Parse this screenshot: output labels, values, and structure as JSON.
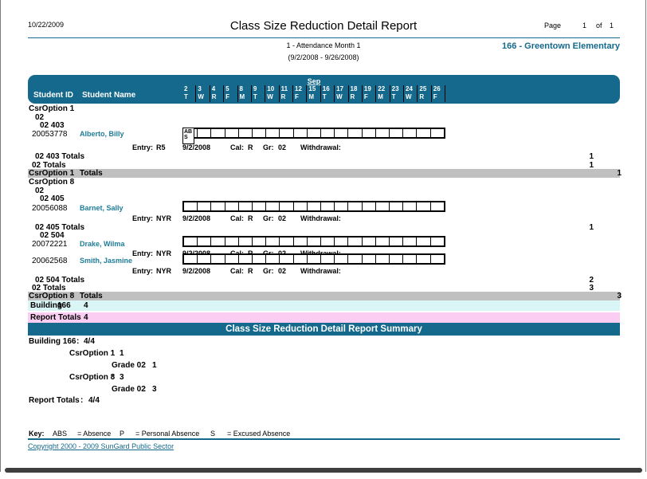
{
  "header": {
    "date": "10/22/2009",
    "title": "Class Size Reduction Detail Report",
    "page_label": "Page",
    "page_number": "1",
    "of_label": "of",
    "page_total": "1",
    "attendance_month": "1 - Attendance Month 1",
    "date_range": "(9/2/2008 - 9/26/2008)",
    "building_name": "166 - Greentown Elementary"
  },
  "grid_header": {
    "month": "Sep",
    "student_id_label": "Student ID",
    "student_name_label": "Student Name",
    "days": [
      {
        "num": "2",
        "dow": "T"
      },
      {
        "num": "3",
        "dow": "W"
      },
      {
        "num": "4",
        "dow": "R"
      },
      {
        "num": "5",
        "dow": "F"
      },
      {
        "num": "8",
        "dow": "M"
      },
      {
        "num": "9",
        "dow": "T"
      },
      {
        "num": "10",
        "dow": "W"
      },
      {
        "num": "11",
        "dow": "R"
      },
      {
        "num": "12",
        "dow": "F"
      },
      {
        "num": "15",
        "dow": "M"
      },
      {
        "num": "16",
        "dow": "T"
      },
      {
        "num": "17",
        "dow": "W"
      },
      {
        "num": "18",
        "dow": "R"
      },
      {
        "num": "19",
        "dow": "F"
      },
      {
        "num": "22",
        "dow": "M"
      },
      {
        "num": "23",
        "dow": "T"
      },
      {
        "num": "24",
        "dow": "W"
      },
      {
        "num": "25",
        "dow": "R"
      },
      {
        "num": "26",
        "dow": "F"
      }
    ]
  },
  "labels": {
    "entry": "Entry:",
    "cal": "Cal:",
    "gr": "Gr:",
    "withdrawal": "Withdrawal:",
    "totals_word": "Totals"
  },
  "attendance_cells": [
    "",
    "",
    "",
    "",
    "",
    "",
    "",
    "",
    "",
    "",
    "",
    "",
    "",
    "",
    "",
    "",
    "",
    "",
    ""
  ],
  "option1": {
    "title": "CsrOption 1",
    "grade": "02",
    "section": "02 403",
    "student": {
      "id": "20053778",
      "name": "Alberto, Billy",
      "abs_code": "ABS",
      "entry_code": "R5",
      "entry_date": "9/2/2008",
      "calendar": "R",
      "grade": "02"
    },
    "section_totals_label": "02 403 Totals",
    "section_total": "1",
    "grade_totals_label": "02 Totals",
    "grade_total": "1",
    "option_totals_label": "CsrOption 1",
    "option_total": "1"
  },
  "option8": {
    "title": "CsrOption 8",
    "grade": "02",
    "section405": "02 405",
    "student405": {
      "id": "20056088",
      "name": "Barnet, Sally",
      "entry_code": "NYR",
      "entry_date": "9/2/2008",
      "calendar": "R",
      "grade": "02"
    },
    "section405_totals_label": "02 405 Totals",
    "section405_total": "1",
    "section504": "02 504",
    "student504a": {
      "id": "20072221",
      "name": "Drake, Wilma",
      "entry_code": "NYR",
      "entry_date": "9/2/2008",
      "calendar": "R",
      "grade": "02"
    },
    "student504b": {
      "id": "20062568",
      "name": "Smith, Jasmine",
      "entry_code": "NYR",
      "entry_date": "9/2/2008",
      "calendar": "R",
      "grade": "02"
    },
    "section504_totals_label": "02 504 Totals",
    "section504_total": "2",
    "grade_totals_label": "02 Totals",
    "grade_total": "3",
    "option_totals_label": "CsrOption 8",
    "option_total": "3"
  },
  "building_totals": {
    "label": "Building",
    "code": "166",
    "value": "4"
  },
  "report_totals": {
    "label": "Report Totals",
    "value": "4"
  },
  "summary": {
    "title": "Class Size Reduction Detail  Report Summary",
    "colon": ":",
    "building": {
      "label": "Building  166",
      "value": "4/4"
    },
    "lines": [
      {
        "label": "CsrOption 1",
        "value": "1"
      },
      {
        "label": "Grade 02",
        "value": "1"
      },
      {
        "label": "CsrOption 8",
        "value": "3"
      },
      {
        "label": "Grade 02",
        "value": "3"
      }
    ],
    "report": {
      "label": "Report Totals",
      "value": "4/4"
    }
  },
  "key": {
    "label": "Key:",
    "items": [
      {
        "code": "ABS",
        "desc": "= Absence"
      },
      {
        "code": "P",
        "desc": "= Personal Absence"
      },
      {
        "code": "S",
        "desc": "= Excused Absence"
      }
    ]
  },
  "footer": {
    "copyright": "Copyright 2000 - 2009 SunGard Public Sector"
  },
  "colors": {
    "teal": "#14698c",
    "gray_bar": "#c0c0c0",
    "cyan_bar": "#d9f5f5",
    "pink_bar": "#fccdf2"
  }
}
